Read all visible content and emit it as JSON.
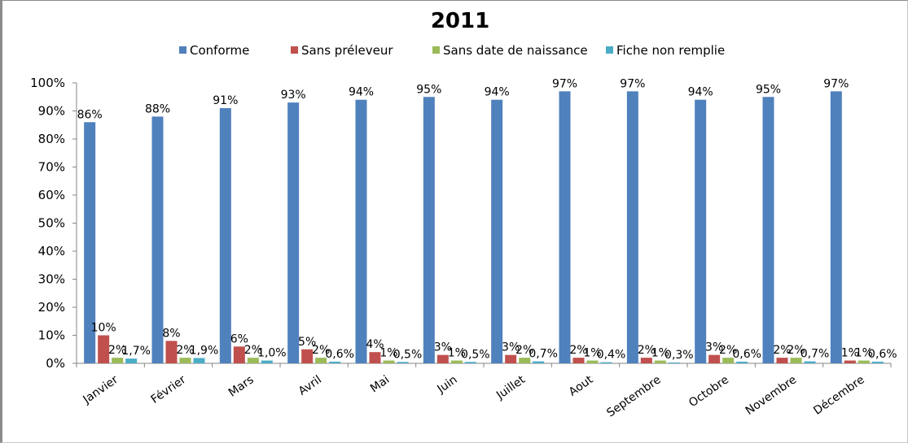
{
  "chart_data": {
    "type": "bar",
    "title": "2011",
    "xlabel": "",
    "ylabel": "",
    "ylim": [
      0,
      100
    ],
    "yticks": [
      "0%",
      "10%",
      "20%",
      "30%",
      "40%",
      "50%",
      "60%",
      "70%",
      "80%",
      "90%",
      "100%"
    ],
    "grid": false,
    "legend_position": "top",
    "categories": [
      "Janvier",
      "Février",
      "Mars",
      "Avril",
      "Mai",
      "Juin",
      "Juillet",
      "Aout",
      "Septembre",
      "Octobre",
      "Novembre",
      "Décembre"
    ],
    "series": [
      {
        "name": "Conforme",
        "color": "#4f81bd",
        "values": [
          86,
          88,
          91,
          93,
          94,
          95,
          94,
          97,
          97,
          94,
          95,
          97
        ],
        "labels": [
          "86%",
          "88%",
          "91%",
          "93%",
          "94%",
          "95%",
          "94%",
          "97%",
          "97%",
          "94%",
          "95%",
          "97%"
        ]
      },
      {
        "name": "Sans préleveur",
        "color": "#c0504d",
        "values": [
          10,
          8,
          6,
          5,
          4,
          3,
          3,
          2,
          2,
          3,
          2,
          1
        ],
        "labels": [
          "10%",
          "8%",
          "6%",
          "5%",
          "4%",
          "3%",
          "3%",
          "2%",
          "2%",
          "3%",
          "2%",
          "1%"
        ]
      },
      {
        "name": "Sans date de naissance",
        "color": "#9bbb59",
        "values": [
          2,
          2,
          2,
          2,
          1,
          1,
          2,
          1,
          1,
          2,
          2,
          1
        ],
        "labels": [
          "2%",
          "2%",
          "2%",
          "2%",
          "1%",
          "1%",
          "2%",
          "1%",
          "1%",
          "2%",
          "2%",
          "1%"
        ]
      },
      {
        "name": "Fiche non remplie",
        "color": "#4bacc6",
        "values": [
          1.7,
          1.9,
          1.0,
          0.6,
          0.5,
          0.5,
          0.7,
          0.4,
          0.3,
          0.6,
          0.7,
          0.6
        ],
        "labels": [
          "1,7%",
          "1,9%",
          "1,0%",
          "0,6%",
          "0,5%",
          "0,5%",
          "0,7%",
          "0,4%",
          "0,3%",
          "0,6%",
          "0,7%",
          "0,6%"
        ]
      }
    ]
  }
}
